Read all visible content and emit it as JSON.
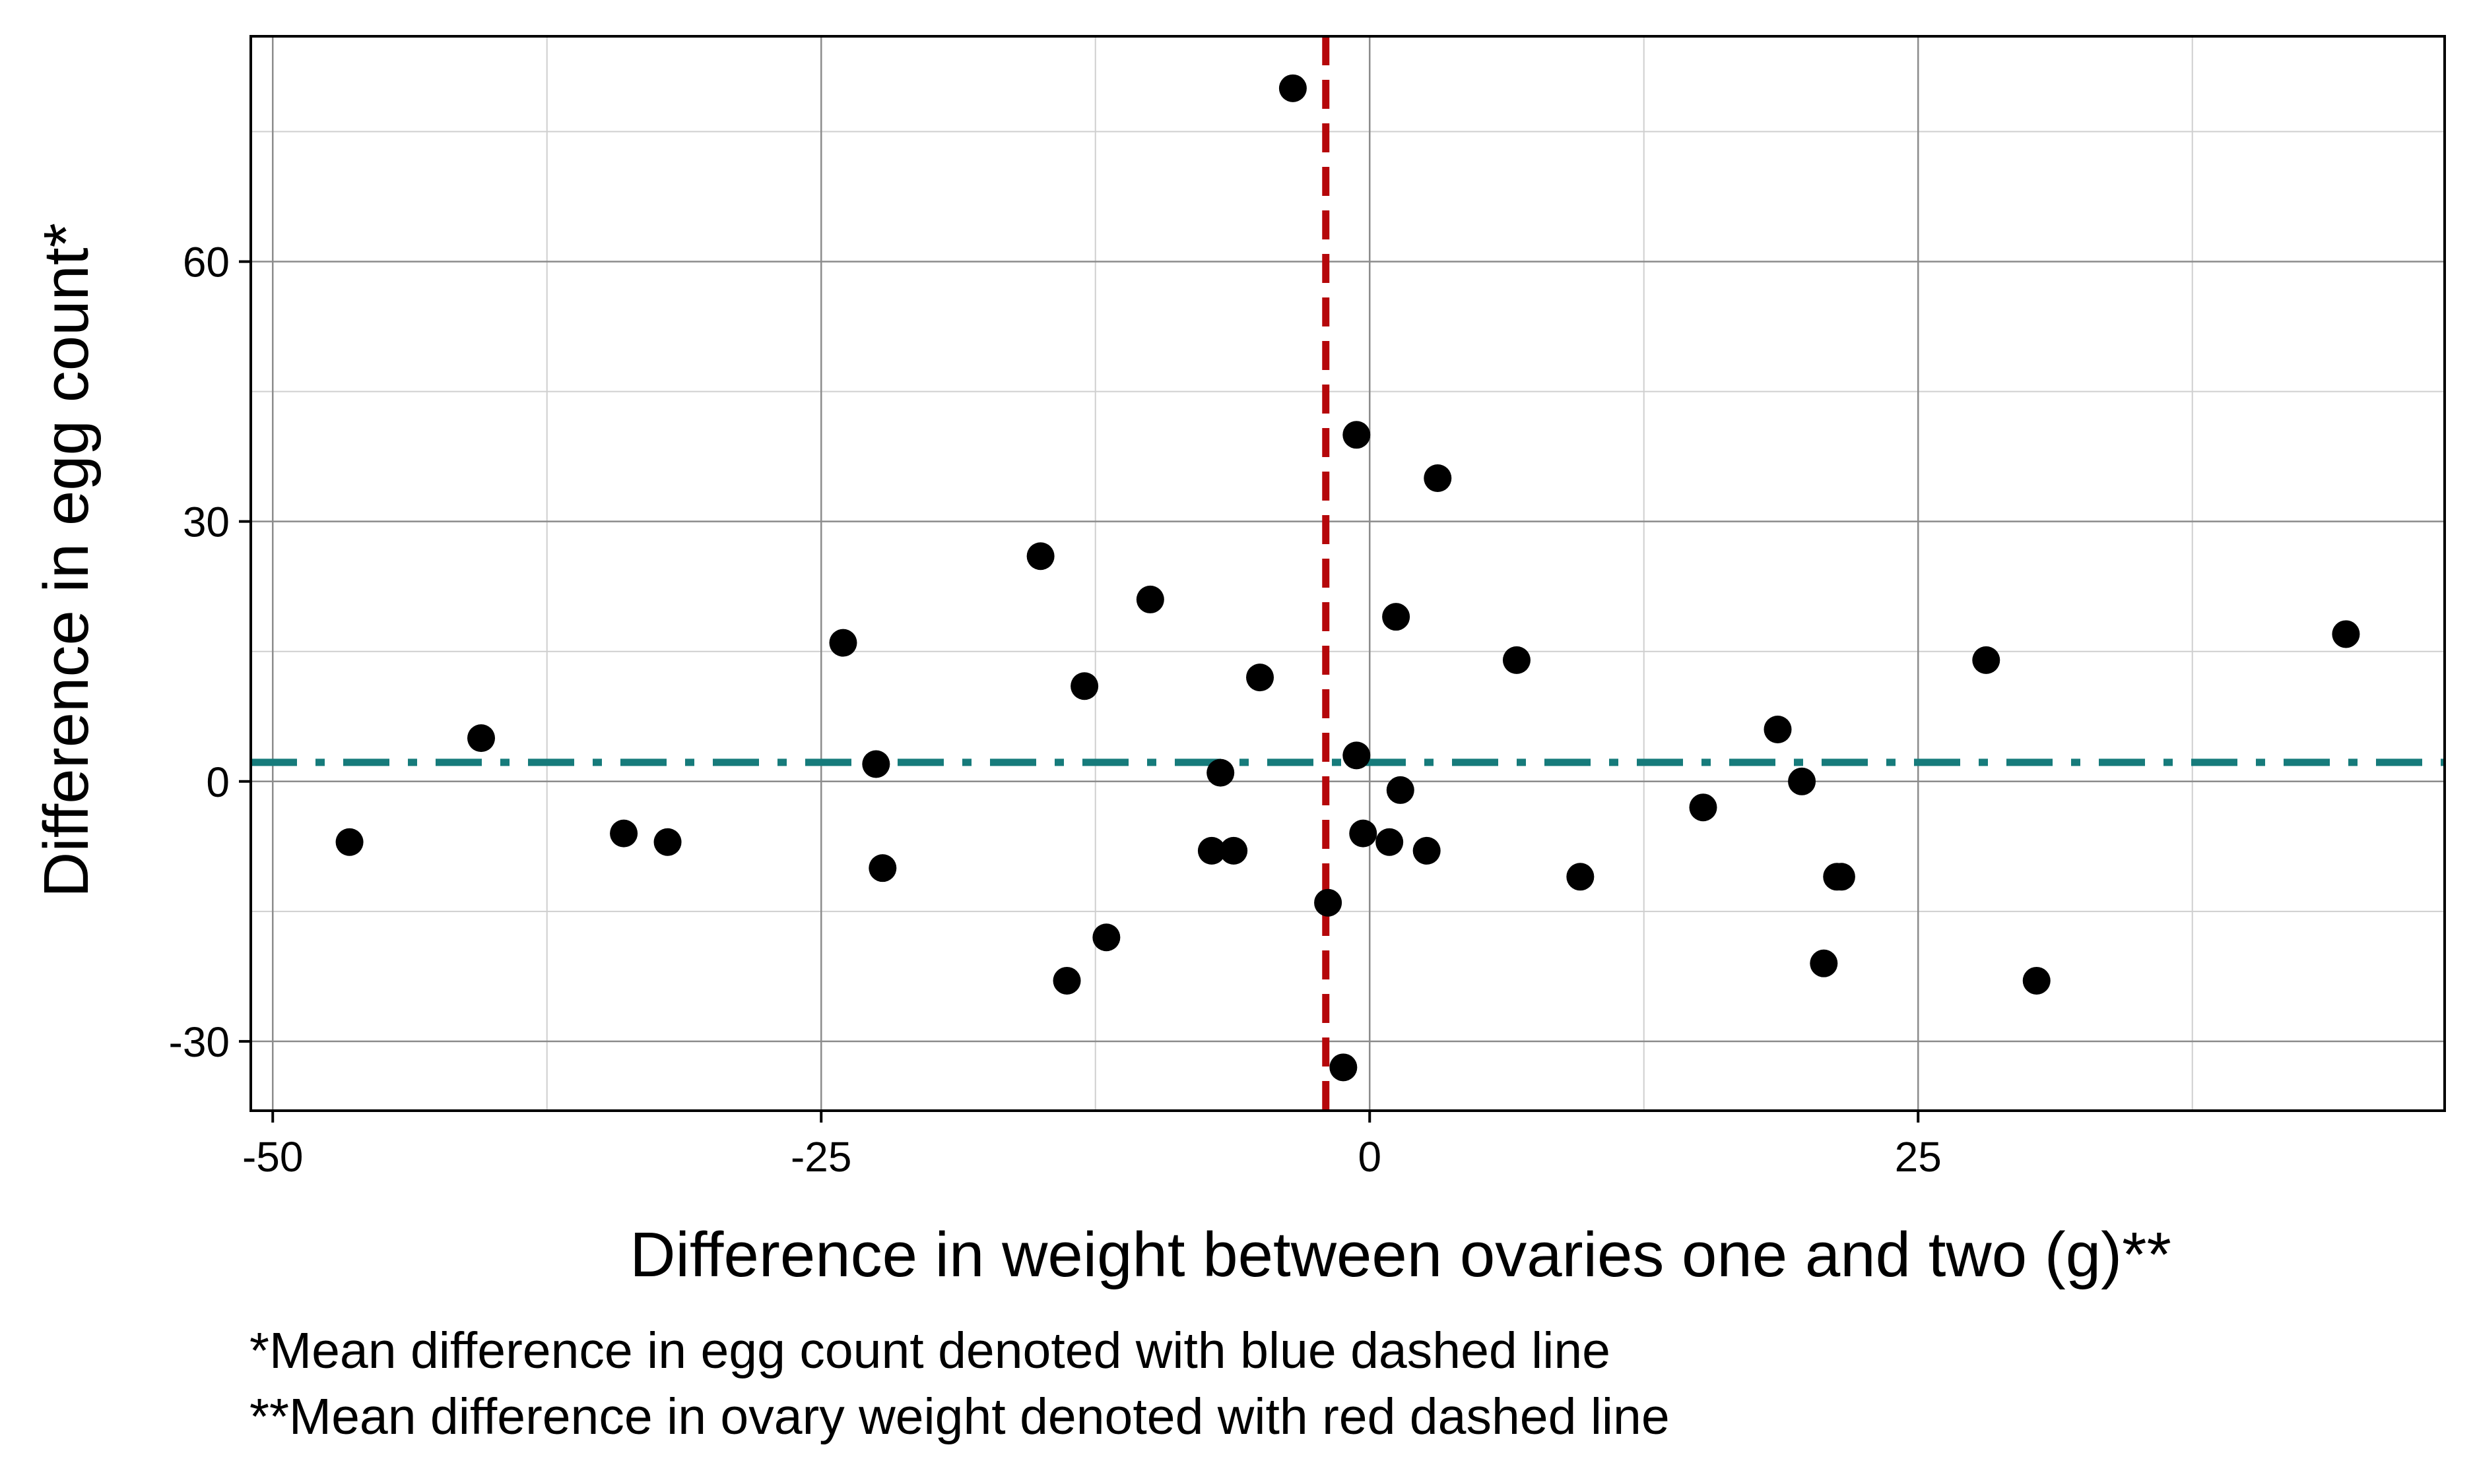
{
  "chart_data": {
    "type": "scatter",
    "xlabel": "Difference in weight between ovaries one and two (g)**",
    "ylabel": "Difference in egg count*",
    "xlim": [
      -51,
      49
    ],
    "ylim": [
      -38,
      86
    ],
    "x_ticks": [
      -50,
      -25,
      0,
      25
    ],
    "y_ticks": [
      -30,
      0,
      30,
      60
    ],
    "grid": true,
    "x": [
      -3.5,
      -0.6,
      3.1,
      -15,
      -10,
      1.2,
      -24,
      6.7,
      -13,
      -5,
      -22.5,
      -0.6,
      -40.5,
      -46.5,
      -34,
      -32,
      -22.2,
      -7.2,
      -6.2,
      -6.8,
      1.4,
      -0.3,
      0.9,
      2.6,
      -1.9,
      -1.2,
      -12,
      -13.8,
      9.6,
      15.2,
      18.6,
      19.7,
      21.5,
      21.3,
      20.7,
      28.1,
      30.4,
      44.5
    ],
    "y": [
      80,
      40,
      35,
      26,
      21,
      19,
      16,
      14,
      11,
      12,
      2,
      3,
      5,
      -7,
      -6,
      -7,
      -10,
      -8,
      -8,
      1,
      -1,
      -6,
      -7,
      -8,
      -14,
      -33,
      -18,
      -23,
      -11,
      -3,
      6,
      0,
      -11,
      -11,
      -21,
      14,
      -23,
      17
    ],
    "point_color": "#000000",
    "mean_x": -2,
    "mean_y": 2.2,
    "mean_x_line_color": "#b5070a",
    "mean_y_line_color": "#167b7b",
    "grid_major_color": "#8c8c8c",
    "grid_minor_color": "#cfcfcf"
  },
  "captions": {
    "line1": "*Mean difference in egg count denoted with blue dashed line",
    "line2": "**Mean difference in ovary weight denoted with red dashed line"
  }
}
